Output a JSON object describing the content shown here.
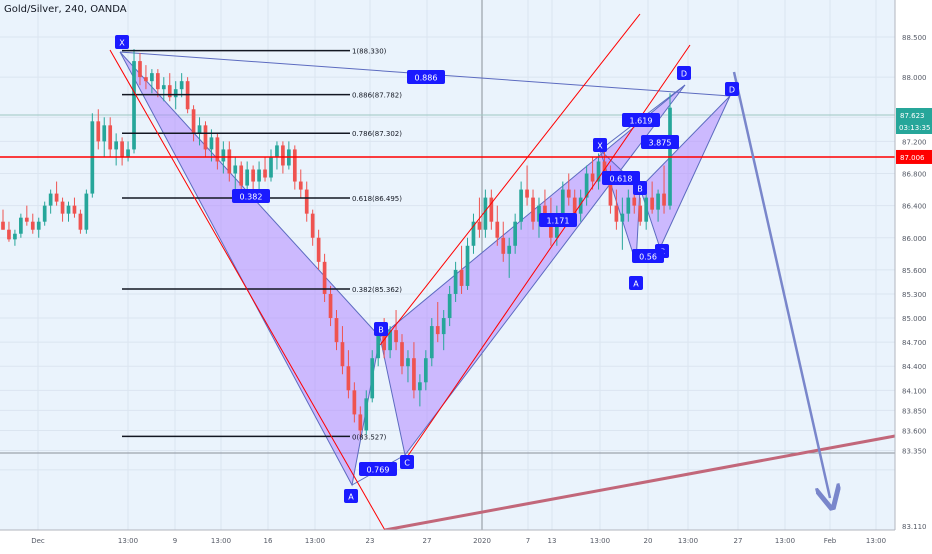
{
  "chart_data": {
    "type": "candlestick",
    "title": "Gold/Silver, 240, OANDA",
    "colors": {
      "background": "#eaf3fc",
      "up": "#26a69a",
      "down": "#ef5350",
      "pattern_fill": "#b388ff",
      "pattern_stroke": "#5c6bc0",
      "label_bg": "#1a1aff",
      "red_line": "#ff0000",
      "forecast_arrow": "#7986cb",
      "support_line": "#c2677a",
      "current_price_bg": "#26a69a",
      "red_level_bg": "#ff0000",
      "axis_text": "#555a66"
    },
    "y_axis": {
      "range": [
        83.11,
        88.75
      ],
      "ticks": [
        "88.500",
        "88.000",
        "87.500",
        "87.200",
        "86.800",
        "86.400",
        "86.000",
        "85.600",
        "85.300",
        "85.000",
        "84.700",
        "84.400",
        "84.100",
        "83.850",
        "83.600",
        "83.350",
        "83.110"
      ]
    },
    "x_axis": {
      "ticks": [
        "Dec",
        "13:00",
        "9",
        "13:00",
        "16",
        "13:00",
        "23",
        "27",
        "2020",
        "7",
        "13",
        "13:00",
        "20",
        "13:00",
        "27",
        "13:00",
        "Feb",
        "13:00"
      ]
    },
    "current_price": {
      "value": "87.623",
      "countdown": "03:13:35"
    },
    "red_level": "87.006",
    "fib_levels": [
      {
        "label": "1(88.330)",
        "value": 88.33
      },
      {
        "label": "0.886(87.782)",
        "value": 87.782
      },
      {
        "label": "0.786(87.302)",
        "value": 87.302
      },
      {
        "label": "0.618(86.495)",
        "value": 86.495
      },
      {
        "label": "0.382(85.362)",
        "value": 85.362
      },
      {
        "label": "0(83.527)",
        "value": 83.527
      }
    ],
    "pattern_labels": [
      "X",
      "B",
      "A",
      "C",
      "D",
      "X",
      "D",
      "A",
      "B",
      "C"
    ],
    "ratio_labels": [
      "0.886",
      "0.382",
      "0.769",
      "1.171",
      "0.618",
      "1.619",
      "3.875",
      "0.56"
    ],
    "candles": [
      [
        86.2,
        86.35,
        86.1,
        86.1
      ],
      [
        86.1,
        86.2,
        85.95,
        85.98
      ],
      [
        85.98,
        86.1,
        85.9,
        86.05
      ],
      [
        86.05,
        86.3,
        86.0,
        86.25
      ],
      [
        86.25,
        86.4,
        86.15,
        86.2
      ],
      [
        86.2,
        86.3,
        86.05,
        86.1
      ],
      [
        86.1,
        86.25,
        86.0,
        86.2
      ],
      [
        86.2,
        86.45,
        86.15,
        86.4
      ],
      [
        86.4,
        86.6,
        86.3,
        86.55
      ],
      [
        86.55,
        86.7,
        86.4,
        86.45
      ],
      [
        86.45,
        86.5,
        86.2,
        86.3
      ],
      [
        86.3,
        86.45,
        86.2,
        86.4
      ],
      [
        86.4,
        86.5,
        86.25,
        86.3
      ],
      [
        86.3,
        86.35,
        86.05,
        86.1
      ],
      [
        86.1,
        86.6,
        86.05,
        86.55
      ],
      [
        86.55,
        87.55,
        86.5,
        87.45
      ],
      [
        87.45,
        87.6,
        87.1,
        87.2
      ],
      [
        87.2,
        87.5,
        87.0,
        87.4
      ],
      [
        87.4,
        87.5,
        87.0,
        87.1
      ],
      [
        87.1,
        87.3,
        86.9,
        87.2
      ],
      [
        87.2,
        87.25,
        86.9,
        87.0
      ],
      [
        87.0,
        87.2,
        86.95,
        87.1
      ],
      [
        87.1,
        88.35,
        87.05,
        88.2
      ],
      [
        88.2,
        88.3,
        87.9,
        88.0
      ],
      [
        88.0,
        88.15,
        87.85,
        87.95
      ],
      [
        87.95,
        88.1,
        87.8,
        88.05
      ],
      [
        88.05,
        88.1,
        87.75,
        87.85
      ],
      [
        87.85,
        88.0,
        87.7,
        87.9
      ],
      [
        87.9,
        88.05,
        87.7,
        87.75
      ],
      [
        87.75,
        87.95,
        87.6,
        87.85
      ],
      [
        87.85,
        88.05,
        87.75,
        87.95
      ],
      [
        87.95,
        88.0,
        87.55,
        87.6
      ],
      [
        87.6,
        87.65,
        87.2,
        87.3
      ],
      [
        87.3,
        87.5,
        87.15,
        87.4
      ],
      [
        87.4,
        87.45,
        87.0,
        87.1
      ],
      [
        87.1,
        87.35,
        86.95,
        87.25
      ],
      [
        87.25,
        87.3,
        86.85,
        86.95
      ],
      [
        86.95,
        87.2,
        86.8,
        87.1
      ],
      [
        87.1,
        87.2,
        86.7,
        86.8
      ],
      [
        86.8,
        87.0,
        86.6,
        86.9
      ],
      [
        86.9,
        86.95,
        86.55,
        86.65
      ],
      [
        86.65,
        86.95,
        86.6,
        86.85
      ],
      [
        86.85,
        86.9,
        86.55,
        86.7
      ],
      [
        86.7,
        86.95,
        86.6,
        86.85
      ],
      [
        86.85,
        87.0,
        86.7,
        86.75
      ],
      [
        86.75,
        87.1,
        86.7,
        87.0
      ],
      [
        87.0,
        87.2,
        86.85,
        87.15
      ],
      [
        87.15,
        87.2,
        86.8,
        86.9
      ],
      [
        86.9,
        87.2,
        86.85,
        87.1
      ],
      [
        87.1,
        87.15,
        86.6,
        86.7
      ],
      [
        86.7,
        86.85,
        86.5,
        86.6
      ],
      [
        86.6,
        86.7,
        86.2,
        86.3
      ],
      [
        86.3,
        86.35,
        85.9,
        86.0
      ],
      [
        86.0,
        86.1,
        85.6,
        85.7
      ],
      [
        85.7,
        85.8,
        85.2,
        85.3
      ],
      [
        85.3,
        85.4,
        84.9,
        85.0
      ],
      [
        85.0,
        85.1,
        84.6,
        84.7
      ],
      [
        84.7,
        84.9,
        84.3,
        84.4
      ],
      [
        84.4,
        84.6,
        84.0,
        84.1
      ],
      [
        84.1,
        84.2,
        83.7,
        83.8
      ],
      [
        83.8,
        83.9,
        83.52,
        83.6
      ],
      [
        83.6,
        84.1,
        83.55,
        84.0
      ],
      [
        84.0,
        84.6,
        83.95,
        84.5
      ],
      [
        84.5,
        84.9,
        84.4,
        84.8
      ],
      [
        84.8,
        85.0,
        84.5,
        84.6
      ],
      [
        84.6,
        84.9,
        84.5,
        84.85
      ],
      [
        84.85,
        85.1,
        84.6,
        84.7
      ],
      [
        84.7,
        84.8,
        84.3,
        84.4
      ],
      [
        84.4,
        84.6,
        84.2,
        84.5
      ],
      [
        84.5,
        84.7,
        84.0,
        84.1
      ],
      [
        84.1,
        84.3,
        83.9,
        84.2
      ],
      [
        84.2,
        84.6,
        84.1,
        84.5
      ],
      [
        84.5,
        85.0,
        84.4,
        84.9
      ],
      [
        84.9,
        85.2,
        84.7,
        84.8
      ],
      [
        84.8,
        85.1,
        84.6,
        85.0
      ],
      [
        85.0,
        85.4,
        84.9,
        85.3
      ],
      [
        85.3,
        85.7,
        85.2,
        85.6
      ],
      [
        85.6,
        85.9,
        85.3,
        85.4
      ],
      [
        85.4,
        86.0,
        85.35,
        85.9
      ],
      [
        85.9,
        86.3,
        85.8,
        86.2
      ],
      [
        86.2,
        86.5,
        86.0,
        86.1
      ],
      [
        86.1,
        86.6,
        86.0,
        86.5
      ],
      [
        86.5,
        86.6,
        86.1,
        86.2
      ],
      [
        86.2,
        86.4,
        85.9,
        86.0
      ],
      [
        86.0,
        86.2,
        85.7,
        85.8
      ],
      [
        85.8,
        86.0,
        85.5,
        85.9
      ],
      [
        85.9,
        86.3,
        85.8,
        86.2
      ],
      [
        86.2,
        86.7,
        86.1,
        86.6
      ],
      [
        86.6,
        86.9,
        86.4,
        86.5
      ],
      [
        86.5,
        86.6,
        86.1,
        86.2
      ],
      [
        86.2,
        86.5,
        86.0,
        86.4
      ],
      [
        86.4,
        86.6,
        86.2,
        86.3
      ],
      [
        86.3,
        86.5,
        85.9,
        86.0
      ],
      [
        86.0,
        86.4,
        85.9,
        86.3
      ],
      [
        86.3,
        86.7,
        86.2,
        86.6
      ],
      [
        86.6,
        86.8,
        86.4,
        86.5
      ],
      [
        86.5,
        86.6,
        86.2,
        86.3
      ],
      [
        86.3,
        86.6,
        86.2,
        86.5
      ],
      [
        86.5,
        86.9,
        86.4,
        86.8
      ],
      [
        86.8,
        87.0,
        86.6,
        86.7
      ],
      [
        86.7,
        87.05,
        86.6,
        86.95
      ],
      [
        86.95,
        87.1,
        86.7,
        86.8
      ],
      [
        86.8,
        86.9,
        86.3,
        86.4
      ],
      [
        86.4,
        86.6,
        86.1,
        86.2
      ],
      [
        86.2,
        86.5,
        85.85,
        86.3
      ],
      [
        86.3,
        86.6,
        86.2,
        86.5
      ],
      [
        86.5,
        86.7,
        86.3,
        86.4
      ],
      [
        86.4,
        86.5,
        86.15,
        86.2
      ],
      [
        86.2,
        86.6,
        86.1,
        86.5
      ],
      [
        86.5,
        86.7,
        86.3,
        86.35
      ],
      [
        86.35,
        86.6,
        86.2,
        86.55
      ],
      [
        86.55,
        86.9,
        86.3,
        86.4
      ],
      [
        86.4,
        87.8,
        86.35,
        87.62
      ]
    ]
  }
}
